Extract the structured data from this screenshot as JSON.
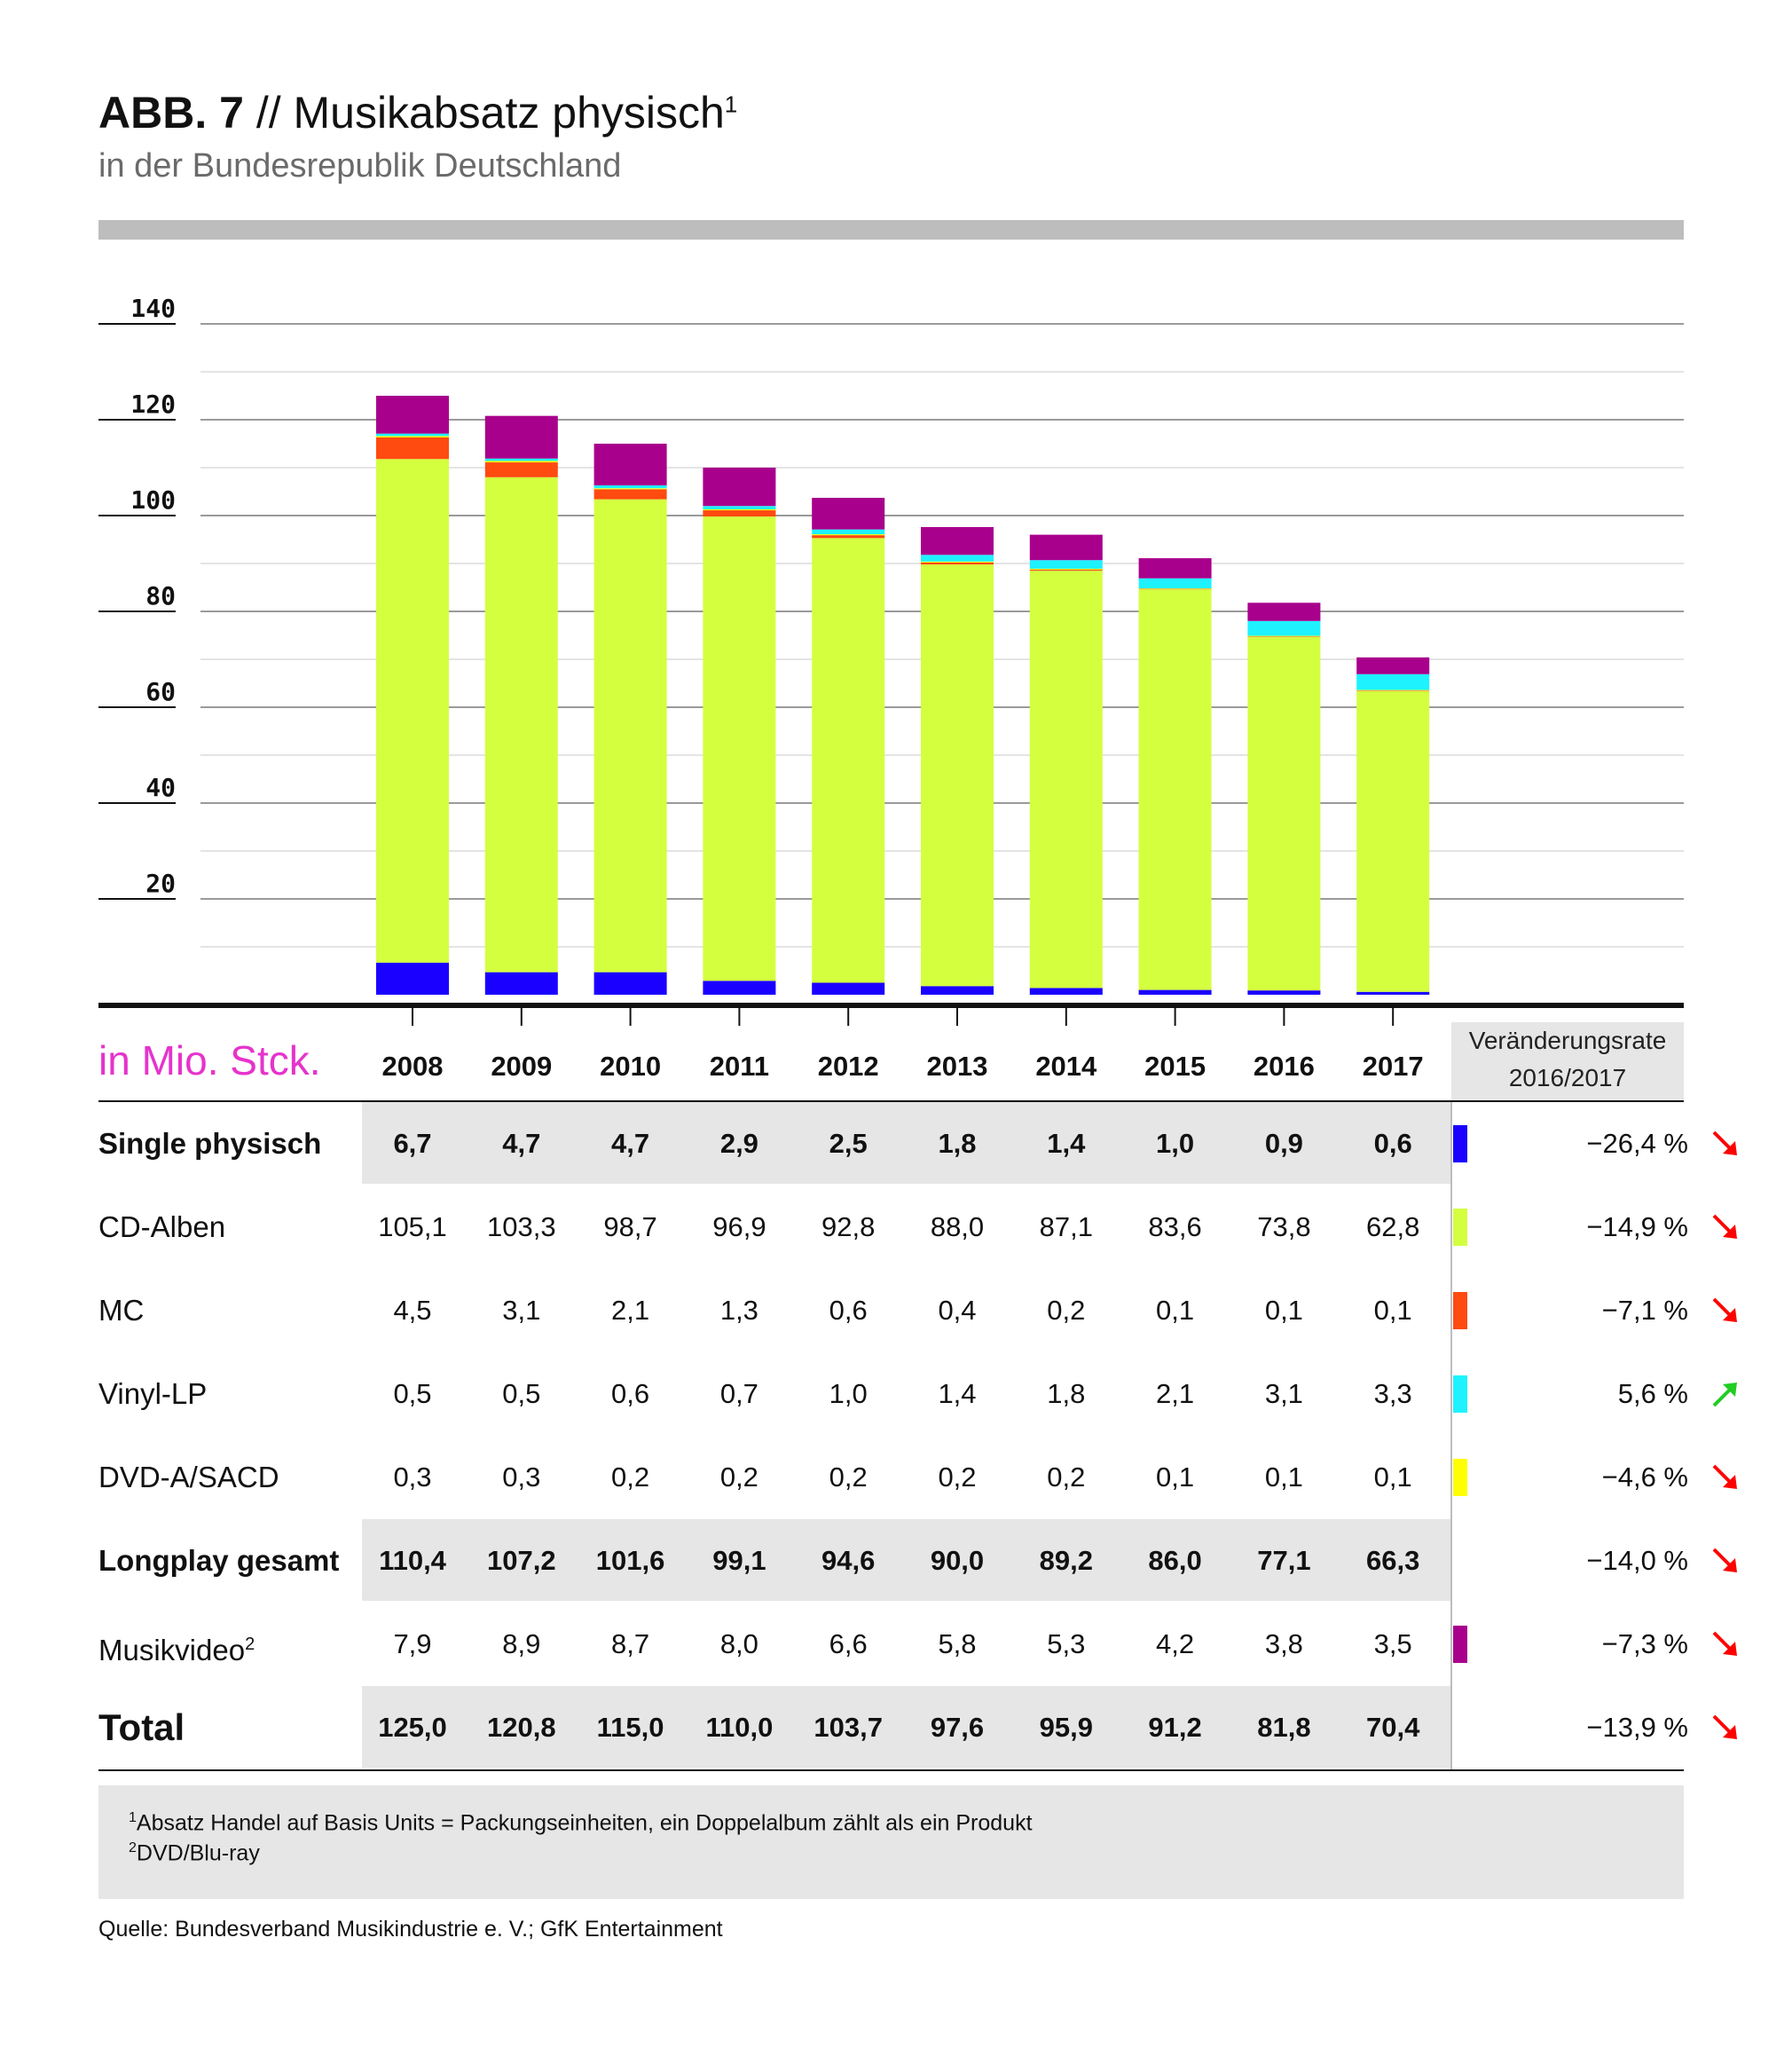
{
  "header": {
    "fig_label": "ABB. 7",
    "title_rest": " // Musikabsatz physisch",
    "title_sup": "1",
    "subtitle": "in der Bundesrepublik Deutschland"
  },
  "table": {
    "unit_label": "in Mio. Stck.",
    "rate_header_line1": "Veränderungsrate",
    "rate_header_line2": "2016/2017",
    "years": [
      "2008",
      "2009",
      "2010",
      "2011",
      "2012",
      "2013",
      "2014",
      "2015",
      "2016",
      "2017"
    ],
    "rows": [
      {
        "label": "Single physisch",
        "bold": true,
        "shaded": true,
        "color": "#1a00ff",
        "values": [
          "6,7",
          "4,7",
          "4,7",
          "2,9",
          "2,5",
          "1,8",
          "1,4",
          "1,0",
          "0,9",
          "0,6"
        ],
        "rate": "−26,4 %",
        "trend": "down"
      },
      {
        "label": "CD-Alben",
        "bold": false,
        "shaded": false,
        "color": "#d4ff3f",
        "values": [
          "105,1",
          "103,3",
          "98,7",
          "96,9",
          "92,8",
          "88,0",
          "87,1",
          "83,6",
          "73,8",
          "62,8"
        ],
        "rate": "−14,9 %",
        "trend": "down"
      },
      {
        "label": "MC",
        "bold": false,
        "shaded": false,
        "color": "#ff4a10",
        "values": [
          "4,5",
          "3,1",
          "2,1",
          "1,3",
          "0,6",
          "0,4",
          "0,2",
          "0,1",
          "0,1",
          "0,1"
        ],
        "rate": "−7,1 %",
        "trend": "down"
      },
      {
        "label": "Vinyl-LP",
        "bold": false,
        "shaded": false,
        "color": "#1ef2ff",
        "values": [
          "0,5",
          "0,5",
          "0,6",
          "0,7",
          "1,0",
          "1,4",
          "1,8",
          "2,1",
          "3,1",
          "3,3"
        ],
        "rate": "5,6 %",
        "trend": "up"
      },
      {
        "label": "DVD-A/SACD",
        "bold": false,
        "shaded": false,
        "color": "#ffff00",
        "values": [
          "0,3",
          "0,3",
          "0,2",
          "0,2",
          "0,2",
          "0,2",
          "0,2",
          "0,1",
          "0,1",
          "0,1"
        ],
        "rate": "−4,6 %",
        "trend": "down"
      },
      {
        "label": "Longplay gesamt",
        "bold": true,
        "shaded": true,
        "color": null,
        "values": [
          "110,4",
          "107,2",
          "101,6",
          "99,1",
          "94,6",
          "90,0",
          "89,2",
          "86,0",
          "77,1",
          "66,3"
        ],
        "rate": "−14,0 %",
        "trend": "down"
      },
      {
        "label": "Musikvideo",
        "label_sup": "2",
        "bold": false,
        "shaded": false,
        "color": "#a8008c",
        "values": [
          "7,9",
          "8,9",
          "8,7",
          "8,0",
          "6,6",
          "5,8",
          "5,3",
          "4,2",
          "3,8",
          "3,5"
        ],
        "rate": "−7,3 %",
        "trend": "down"
      },
      {
        "label": "Total",
        "bold": true,
        "shaded": true,
        "color": null,
        "big": true,
        "values": [
          "125,0",
          "120,8",
          "115,0",
          "110,0",
          "103,7",
          "97,6",
          "95,9",
          "91,2",
          "81,8",
          "70,4"
        ],
        "rate": "−13,9 %",
        "trend": "down"
      }
    ]
  },
  "footnotes": {
    "fn1_mark": "1",
    "fn1_text": "Absatz Handel auf Basis Units = Packungseinheiten, ein Doppelalbum zählt als ein Produkt",
    "fn2_mark": "2",
    "fn2_text": "DVD/Blu-ray"
  },
  "source": "Quelle: Bundesverband Musikindustrie e. V.; GfK Entertainment",
  "chart_data": {
    "type": "bar",
    "stacked": true,
    "categories": [
      "2008",
      "2009",
      "2010",
      "2011",
      "2012",
      "2013",
      "2014",
      "2015",
      "2016",
      "2017"
    ],
    "series": [
      {
        "name": "Single physisch",
        "color": "#1a00ff",
        "values": [
          6.7,
          4.7,
          4.7,
          2.9,
          2.5,
          1.8,
          1.4,
          1.0,
          0.9,
          0.6
        ]
      },
      {
        "name": "CD-Alben",
        "color": "#d4ff3f",
        "values": [
          105.1,
          103.3,
          98.7,
          96.9,
          92.8,
          88.0,
          87.1,
          83.6,
          73.8,
          62.8
        ]
      },
      {
        "name": "MC",
        "color": "#ff4a10",
        "values": [
          4.5,
          3.1,
          2.1,
          1.3,
          0.6,
          0.4,
          0.2,
          0.1,
          0.1,
          0.1
        ]
      },
      {
        "name": "DVD-A/SACD",
        "color": "#ffff00",
        "values": [
          0.3,
          0.3,
          0.2,
          0.2,
          0.2,
          0.2,
          0.2,
          0.1,
          0.1,
          0.1
        ]
      },
      {
        "name": "Vinyl-LP",
        "color": "#1ef2ff",
        "values": [
          0.5,
          0.5,
          0.6,
          0.7,
          1.0,
          1.4,
          1.8,
          2.1,
          3.1,
          3.3
        ]
      },
      {
        "name": "Musikvideo",
        "color": "#a8008c",
        "values": [
          7.9,
          8.9,
          8.7,
          8.0,
          6.6,
          5.8,
          5.3,
          4.2,
          3.8,
          3.5
        ]
      }
    ],
    "ylim": [
      0,
      140
    ],
    "yticks": [
      20,
      40,
      60,
      80,
      100,
      120,
      140
    ],
    "grid": true
  }
}
